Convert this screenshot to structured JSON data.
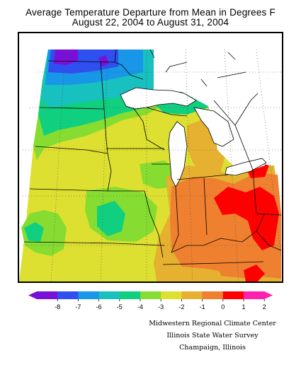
{
  "title": {
    "line1": "Average Temperature Departure from Mean in Degrees F",
    "line2": "August 22, 2004 to August 31, 2004"
  },
  "legend": {
    "ticks": [
      "-8",
      "-7",
      "-6",
      "-5",
      "-4",
      "-3",
      "-2",
      "-1",
      "0",
      "1",
      "2"
    ],
    "colors": [
      "#7a10d6",
      "#2f4ff0",
      "#1896e8",
      "#18c0c0",
      "#10d080",
      "#86dc30",
      "#dde030",
      "#e6b030",
      "#ee8030",
      "#ff0000",
      "#ff20b0"
    ]
  },
  "credits": {
    "line1": "Midwestern Regional Climate Center",
    "line2": "Illinois State Water Survey",
    "line3": "Champaign, Illinois"
  }
}
